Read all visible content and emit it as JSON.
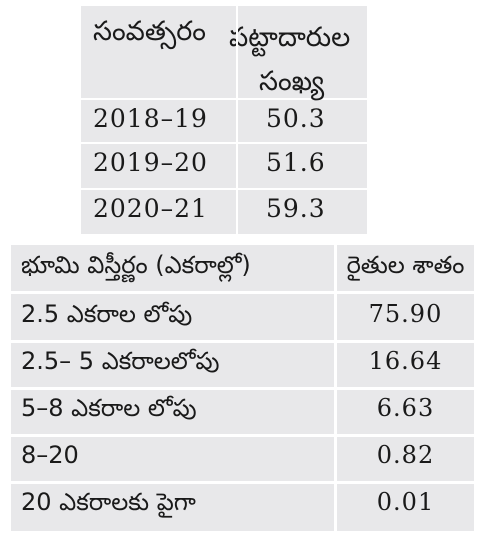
{
  "table1": {
    "header": {
      "year": "సంవత్సరం",
      "owners_line1": "పట్టాదారుల",
      "owners_line2": "సంఖ్య"
    },
    "rows": [
      {
        "year": "2018–19",
        "value": "50.3"
      },
      {
        "year": "2019–20",
        "value": "51.6"
      },
      {
        "year": "2020–21",
        "value": "59.3"
      }
    ]
  },
  "table2": {
    "header": {
      "land": "భూమి విస్తీర్ణం (ఎకరాల్లో)",
      "percent": "రైతుల శాతం"
    },
    "rows": [
      {
        "land": "2.5 ఎకరాల లోపు",
        "percent": "75.90"
      },
      {
        "land": "2.5– 5 ఎకరాలలోపు",
        "percent": "16.64"
      },
      {
        "land": "5–8 ఎకరాల లోపు",
        "percent": "6.63"
      },
      {
        "land": "8–20",
        "percent": "0.82"
      },
      {
        "land": "20 ఎకరాలకు పైగా",
        "percent": "0.01"
      }
    ]
  }
}
